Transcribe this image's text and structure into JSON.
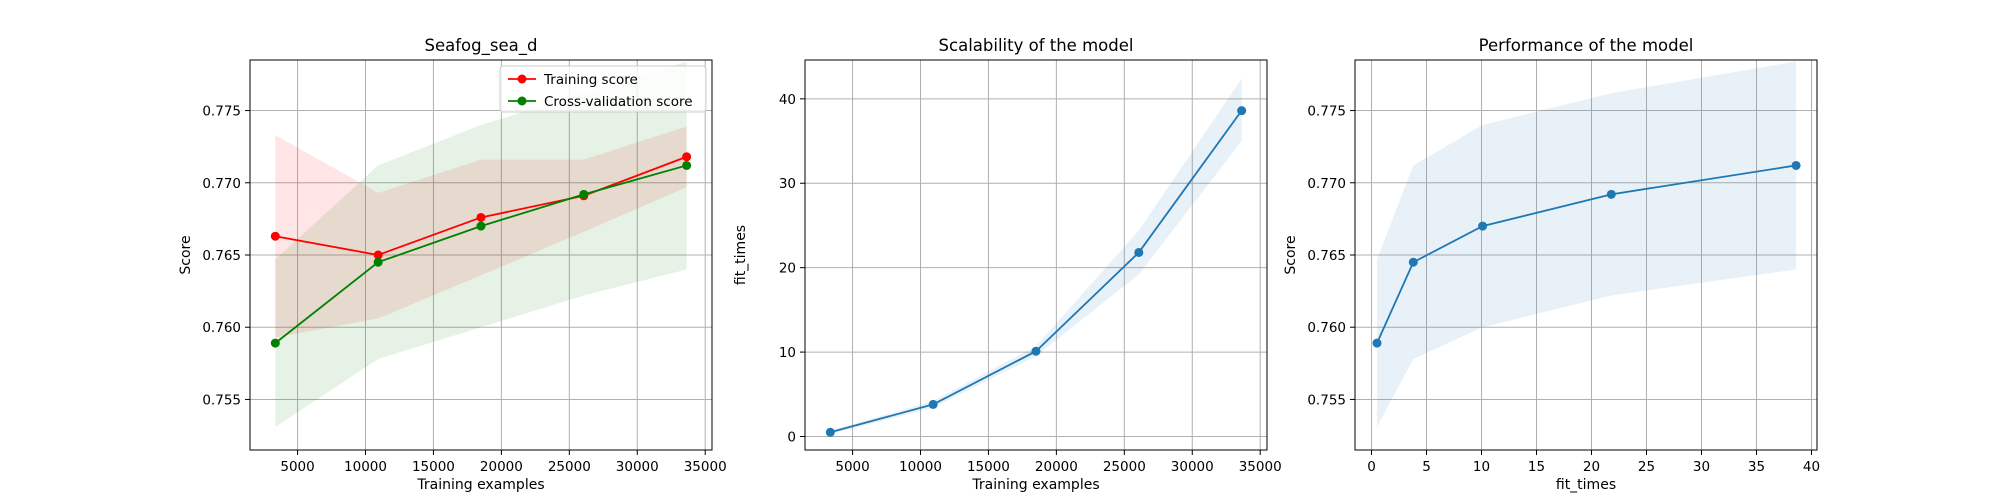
{
  "chart_data": [
    {
      "type": "line",
      "title": "Seafog_sea_d",
      "xlabel": "Training examples",
      "ylabel": "Score",
      "xlim": [
        1500,
        35500
      ],
      "ylim": [
        0.7515,
        0.7785
      ],
      "xticks": [
        5000,
        10000,
        15000,
        20000,
        25000,
        30000,
        35000
      ],
      "yticks": [
        0.755,
        0.76,
        0.765,
        0.77,
        0.775
      ],
      "ytick_decimals": 3,
      "grid": true,
      "legend": "top-right",
      "x": [
        3363,
        10931,
        18498,
        26066,
        33634
      ],
      "series": [
        {
          "name": "Training score",
          "color": "#ff0000",
          "band_color": "#ff0000",
          "values": [
            0.7663,
            0.765,
            0.7676,
            0.7691,
            0.7718
          ],
          "band_low": [
            0.7593,
            0.7606,
            0.7636,
            0.7666,
            0.7697
          ],
          "band_high": [
            0.7733,
            0.7693,
            0.7716,
            0.7716,
            0.7739
          ]
        },
        {
          "name": "Cross-validation score",
          "color": "#008000",
          "band_color": "#008000",
          "values": [
            0.7589,
            0.7645,
            0.767,
            0.7692,
            0.7712
          ],
          "band_low": [
            0.7531,
            0.7578,
            0.76,
            0.7622,
            0.764
          ],
          "band_high": [
            0.7647,
            0.7712,
            0.774,
            0.7762,
            0.7784
          ]
        }
      ]
    },
    {
      "type": "line",
      "title": "Scalability of the model",
      "xlabel": "Training examples",
      "ylabel": "fit_times",
      "xlim": [
        1500,
        35500
      ],
      "ylim": [
        -1.6,
        44.6
      ],
      "xticks": [
        5000,
        10000,
        15000,
        20000,
        25000,
        30000,
        35000
      ],
      "yticks": [
        0,
        10,
        20,
        30,
        40
      ],
      "ytick_decimals": 0,
      "grid": true,
      "x": [
        3363,
        10931,
        18498,
        26066,
        33634
      ],
      "series": [
        {
          "color": "#1f77b4",
          "band_color": "#1f77b4",
          "values": [
            0.5,
            3.8,
            10.1,
            21.8,
            38.6
          ],
          "band_low": [
            0.3,
            3.4,
            9.5,
            19.2,
            35.0
          ],
          "band_high": [
            0.7,
            4.2,
            10.7,
            24.4,
            42.4
          ]
        }
      ]
    },
    {
      "type": "line",
      "title": "Performance of the model",
      "xlabel": "fit_times",
      "ylabel": "Score",
      "xlim": [
        -1.5,
        40.5
      ],
      "ylim": [
        0.7515,
        0.7785
      ],
      "xticks": [
        0,
        5,
        10,
        15,
        20,
        25,
        30,
        35,
        40
      ],
      "yticks": [
        0.755,
        0.76,
        0.765,
        0.77,
        0.775
      ],
      "ytick_decimals": 3,
      "grid": true,
      "x": [
        0.5,
        3.8,
        10.1,
        21.8,
        38.6
      ],
      "series": [
        {
          "color": "#1f77b4",
          "band_color": "#1f77b4",
          "values": [
            0.7589,
            0.7645,
            0.767,
            0.7692,
            0.7712
          ],
          "band_low": [
            0.7531,
            0.7578,
            0.76,
            0.7622,
            0.764
          ],
          "band_high": [
            0.7647,
            0.7712,
            0.774,
            0.7762,
            0.7784
          ]
        }
      ]
    }
  ]
}
